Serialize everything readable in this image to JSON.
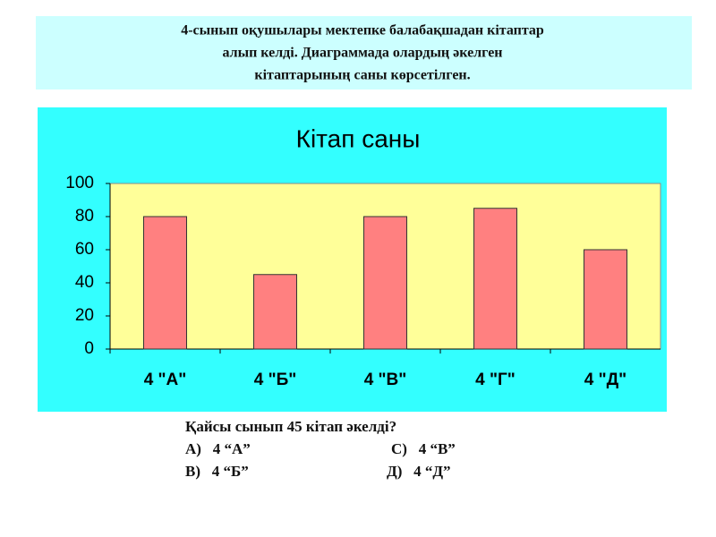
{
  "header": {
    "lines": [
      "4-сынып  оқушылары мектепке балабақшадан кітаптар",
      "алып келді.  Диаграммада олардың әкелген",
      "кітаптарының  саны көрсетілген."
    ]
  },
  "chart_data": {
    "type": "bar",
    "title": "Кітап саны",
    "categories": [
      "4 \"А\"",
      "4 \"Б\"",
      "4 \"В\"",
      "4 \"Г\"",
      "4 \"Д\""
    ],
    "values": [
      80,
      45,
      80,
      85,
      60
    ],
    "color": "#ff8080",
    "ylim": [
      0,
      100
    ],
    "yticks": [
      0,
      20,
      40,
      60,
      80,
      100
    ],
    "grid": false
  },
  "question": {
    "text": "Қайсы сынып 45 кітап әкелді?",
    "options": [
      "А)   4 “А”",
      "С)   4 “В”",
      "В)   4 “Б”",
      "Д)   4 “Д”"
    ]
  }
}
